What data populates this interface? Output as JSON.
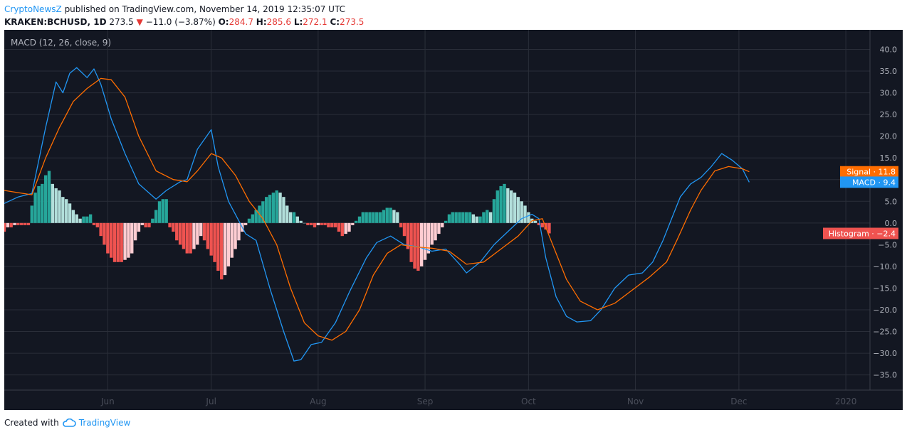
{
  "header": {
    "publisher": "CryptoNewsZ",
    "published_text": "published on TradingView.com, November 14, 2019 12:35:07 UTC",
    "symbol": "KRAKEN:BCHUSD, 1D",
    "last": "273.5",
    "change": "−11.0 (−3.87%)",
    "o_label": "O:",
    "o": "284.7",
    "h_label": "H:",
    "h": "285.6",
    "l_label": "L:",
    "l": "272.1",
    "c_label": "C:",
    "c": "273.5"
  },
  "footer": {
    "created_with": "Created with",
    "brand": "TradingView"
  },
  "colors": {
    "background": "#131722",
    "grid": "#2a2e39",
    "macd": "#2196f3",
    "signal": "#ff6d00",
    "hist_pos_strong": "#26a69a",
    "hist_pos_weak": "#b2dfdb",
    "hist_neg_strong": "#ef5350",
    "hist_neg_weak": "#ffcdd2"
  },
  "chart_data": {
    "type": "line",
    "title": "MACD (12, 26, close, 9)",
    "x_ticks": [
      "Jun",
      "Jul",
      "Aug",
      "Sep",
      "Oct",
      "Nov",
      "Dec",
      "2020"
    ],
    "y_ticks": [
      40.0,
      35.0,
      30.0,
      25.0,
      20.0,
      15.0,
      10.0,
      5.0,
      0.0,
      -5.0,
      -10.0,
      -15.0,
      -20.0,
      -25.0,
      -30.0,
      -35.0
    ],
    "ylim": [
      -38.5,
      44.5
    ],
    "x_range": [
      "2019-05-02",
      "2020-01-08"
    ],
    "grid": true,
    "series": [
      {
        "name": "MACD",
        "last_label": "MACD",
        "last_value": "9.4",
        "points": [
          [
            "2019-05-02",
            4.5
          ],
          [
            "2019-05-06",
            6.0
          ],
          [
            "2019-05-10",
            6.8
          ],
          [
            "2019-05-14",
            22.0
          ],
          [
            "2019-05-17",
            32.5
          ],
          [
            "2019-05-19",
            30.0
          ],
          [
            "2019-05-21",
            34.5
          ],
          [
            "2019-05-23",
            35.8
          ],
          [
            "2019-05-26",
            33.5
          ],
          [
            "2019-05-28",
            35.5
          ],
          [
            "2019-05-30",
            32.0
          ],
          [
            "2019-06-02",
            24.0
          ],
          [
            "2019-06-06",
            16.0
          ],
          [
            "2019-06-10",
            9.0
          ],
          [
            "2019-06-15",
            5.5
          ],
          [
            "2019-06-18",
            7.5
          ],
          [
            "2019-06-22",
            9.5
          ],
          [
            "2019-06-24",
            10.0
          ],
          [
            "2019-06-27",
            17.0
          ],
          [
            "2019-07-01",
            21.5
          ],
          [
            "2019-07-03",
            13.0
          ],
          [
            "2019-07-06",
            5.0
          ],
          [
            "2019-07-08",
            2.0
          ],
          [
            "2019-07-11",
            -2.5
          ],
          [
            "2019-07-14",
            -4.0
          ],
          [
            "2019-07-18",
            -15.0
          ],
          [
            "2019-07-22",
            -25.0
          ],
          [
            "2019-07-25",
            -31.8
          ],
          [
            "2019-07-27",
            -31.5
          ],
          [
            "2019-07-30",
            -28.0
          ],
          [
            "2019-08-02",
            -27.5
          ],
          [
            "2019-08-06",
            -23.0
          ],
          [
            "2019-08-10",
            -16.0
          ],
          [
            "2019-08-15",
            -8.0
          ],
          [
            "2019-08-18",
            -4.5
          ],
          [
            "2019-08-22",
            -3.0
          ],
          [
            "2019-08-26",
            -5.0
          ],
          [
            "2019-08-30",
            -5.5
          ],
          [
            "2019-09-03",
            -6.5
          ],
          [
            "2019-09-07",
            -6.0
          ],
          [
            "2019-09-11",
            -9.5
          ],
          [
            "2019-09-13",
            -11.5
          ],
          [
            "2019-09-17",
            -9.0
          ],
          [
            "2019-09-21",
            -5.0
          ],
          [
            "2019-09-25",
            -2.0
          ],
          [
            "2019-09-29",
            1.0
          ],
          [
            "2019-10-02",
            2.0
          ],
          [
            "2019-10-04",
            1.0
          ],
          [
            "2019-10-06",
            -8.0
          ],
          [
            "2019-10-09",
            -17.0
          ],
          [
            "2019-10-12",
            -21.5
          ],
          [
            "2019-10-15",
            -22.8
          ],
          [
            "2019-10-19",
            -22.5
          ],
          [
            "2019-10-22",
            -20.0
          ],
          [
            "2019-10-26",
            -15.0
          ],
          [
            "2019-10-30",
            -12.0
          ],
          [
            "2019-11-03",
            -11.5
          ],
          [
            "2019-11-06",
            -9.0
          ],
          [
            "2019-11-09",
            -4.0
          ],
          [
            "2019-11-11",
            0.0
          ],
          [
            "2019-11-14",
            6.0
          ],
          [
            "2019-11-17",
            9.0
          ],
          [
            "2019-11-20",
            10.5
          ],
          [
            "2019-11-23",
            13.0
          ],
          [
            "2019-11-26",
            16.0
          ],
          [
            "2019-11-29",
            14.5
          ],
          [
            "2019-12-02",
            12.5
          ],
          [
            "2019-12-04",
            9.4
          ]
        ]
      },
      {
        "name": "Signal",
        "last_label": "Signal",
        "last_value": "11.8",
        "points": [
          [
            "2019-05-02",
            7.5
          ],
          [
            "2019-05-06",
            7.0
          ],
          [
            "2019-05-10",
            6.5
          ],
          [
            "2019-05-14",
            15.0
          ],
          [
            "2019-05-18",
            22.0
          ],
          [
            "2019-05-22",
            28.0
          ],
          [
            "2019-05-26",
            31.0
          ],
          [
            "2019-05-30",
            33.3
          ],
          [
            "2019-06-02",
            33.0
          ],
          [
            "2019-06-06",
            29.0
          ],
          [
            "2019-06-10",
            20.0
          ],
          [
            "2019-06-15",
            12.0
          ],
          [
            "2019-06-20",
            10.0
          ],
          [
            "2019-06-24",
            9.5
          ],
          [
            "2019-06-27",
            12.0
          ],
          [
            "2019-07-01",
            16.0
          ],
          [
            "2019-07-04",
            15.0
          ],
          [
            "2019-07-08",
            11.0
          ],
          [
            "2019-07-12",
            5.0
          ],
          [
            "2019-07-16",
            1.0
          ],
          [
            "2019-07-20",
            -5.0
          ],
          [
            "2019-07-24",
            -15.0
          ],
          [
            "2019-07-28",
            -23.0
          ],
          [
            "2019-08-01",
            -26.0
          ],
          [
            "2019-08-05",
            -27.0
          ],
          [
            "2019-08-09",
            -25.0
          ],
          [
            "2019-08-13",
            -20.0
          ],
          [
            "2019-08-17",
            -12.0
          ],
          [
            "2019-08-21",
            -7.0
          ],
          [
            "2019-08-25",
            -5.0
          ],
          [
            "2019-08-29",
            -5.5
          ],
          [
            "2019-09-03",
            -5.8
          ],
          [
            "2019-09-08",
            -6.5
          ],
          [
            "2019-09-13",
            -9.5
          ],
          [
            "2019-09-18",
            -9.0
          ],
          [
            "2019-09-23",
            -6.0
          ],
          [
            "2019-09-28",
            -3.0
          ],
          [
            "2019-10-02",
            0.5
          ],
          [
            "2019-10-05",
            1.0
          ],
          [
            "2019-10-08",
            -5.0
          ],
          [
            "2019-10-12",
            -13.0
          ],
          [
            "2019-10-16",
            -18.0
          ],
          [
            "2019-10-21",
            -20.0
          ],
          [
            "2019-10-26",
            -18.5
          ],
          [
            "2019-10-31",
            -15.5
          ],
          [
            "2019-11-05",
            -12.5
          ],
          [
            "2019-11-10",
            -9.0
          ],
          [
            "2019-11-13",
            -4.0
          ],
          [
            "2019-11-17",
            3.0
          ],
          [
            "2019-11-20",
            7.5
          ],
          [
            "2019-11-24",
            12.0
          ],
          [
            "2019-11-28",
            13.0
          ],
          [
            "2019-12-02",
            12.5
          ],
          [
            "2019-12-04",
            11.8
          ]
        ]
      },
      {
        "name": "Histogram",
        "last_label": "Histogram",
        "last_value": "−2.4",
        "type": "histogram",
        "start": "2019-05-02",
        "values": [
          -2.0,
          -1.0,
          -1.0,
          -0.5,
          -0.5,
          -0.5,
          -0.5,
          -0.5,
          4.0,
          7.0,
          8.5,
          9.0,
          11.0,
          12.0,
          9.0,
          8.0,
          7.5,
          6.0,
          5.5,
          4.5,
          3.0,
          2.0,
          1.0,
          1.5,
          1.5,
          2.0,
          -0.5,
          -1.0,
          -3.0,
          -5.0,
          -7.0,
          -8.0,
          -9.0,
          -9.0,
          -9.0,
          -8.5,
          -8.0,
          -7.0,
          -4.0,
          -2.0,
          -0.5,
          -1.0,
          -1.0,
          1.0,
          3.0,
          5.0,
          5.5,
          5.5,
          -1.0,
          -2.0,
          -4.0,
          -5.0,
          -6.0,
          -7.0,
          -7.0,
          -6.0,
          -5.0,
          -3.0,
          -4.0,
          -6.0,
          -7.5,
          -9.0,
          -11.0,
          -13.0,
          -12.0,
          -10.0,
          -8.0,
          -6.0,
          -4.0,
          -2.0,
          -0.5,
          1.0,
          2.0,
          3.0,
          4.0,
          5.0,
          6.0,
          6.5,
          7.0,
          7.5,
          7.0,
          6.0,
          4.0,
          2.5,
          2.5,
          1.5,
          0.5,
          0.0,
          -0.5,
          -0.5,
          -1.0,
          -0.5,
          -0.5,
          -0.5,
          -1.0,
          -1.0,
          -1.0,
          -2.0,
          -3.0,
          -2.5,
          -2.0,
          -0.5,
          0.5,
          1.5,
          2.5,
          2.5,
          2.5,
          2.5,
          2.5,
          2.5,
          3.0,
          3.5,
          3.5,
          3.0,
          2.5,
          -1.0,
          -3.0,
          -6.0,
          -9.0,
          -10.5,
          -11.0,
          -10.0,
          -8.5,
          -7.0,
          -5.0,
          -4.0,
          -2.5,
          -1.0,
          0.5,
          2.0,
          2.5,
          2.5,
          2.5,
          2.5,
          2.5,
          2.5,
          2.0,
          1.5,
          1.5,
          2.5,
          3.0,
          2.5,
          5.5,
          7.5,
          8.5,
          9.0,
          8.0,
          7.5,
          7.0,
          6.0,
          5.0,
          4.0,
          2.5,
          1.0,
          0.5,
          -0.5,
          -1.0,
          -1.5,
          -2.4
        ]
      }
    ]
  }
}
